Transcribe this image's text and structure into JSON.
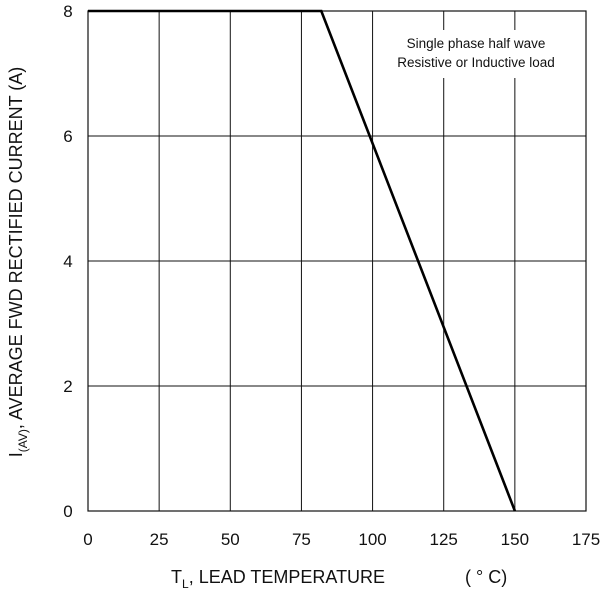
{
  "chart_data": {
    "type": "line",
    "xlabel_main": "T",
    "xlabel_sub": "L",
    "xlabel_rest": ", LEAD TEMPERATURE",
    "xlabel_unit": "( ° C)",
    "ylabel_main": "I",
    "ylabel_sub": "(AV)",
    "ylabel_rest": ", AVERAGE FWD RECTIFIED CURRENT (A)",
    "annotation": [
      "Single phase half wave",
      "Resistive or Inductive load"
    ],
    "xlim": [
      0,
      175
    ],
    "ylim": [
      0,
      8
    ],
    "x_ticks": [
      "0",
      "25",
      "50",
      "75",
      "100",
      "125",
      "150",
      "175"
    ],
    "y_ticks": [
      "0",
      "2",
      "4",
      "6",
      "8"
    ],
    "grid": true,
    "series": [
      {
        "x": [
          0,
          82,
          150
        ],
        "y": [
          8,
          8,
          0
        ]
      }
    ]
  }
}
